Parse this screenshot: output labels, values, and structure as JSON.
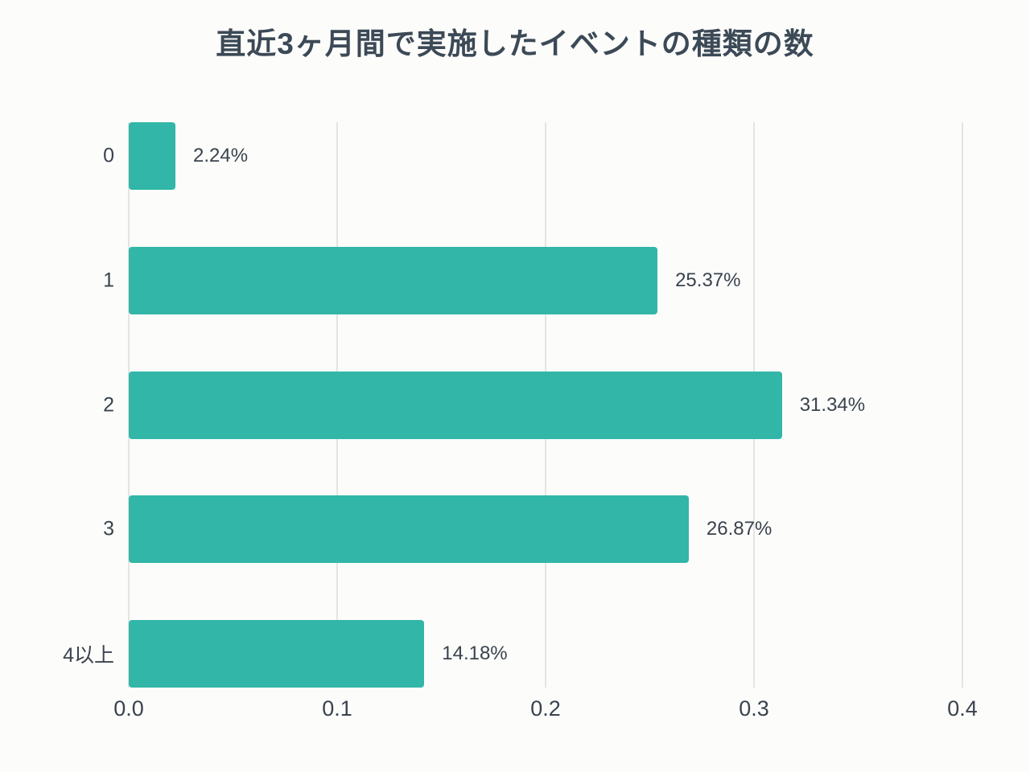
{
  "colors": {
    "bar": "#31b6a8",
    "grid": "#e4e4e3",
    "text": "#3a434d",
    "title": "#3c4956",
    "background": "#fcfcfb"
  },
  "chart_data": {
    "type": "bar",
    "orientation": "horizontal",
    "title": "直近3ヶ月間で実施したイベントの種類の数",
    "categories": [
      "0",
      "1",
      "2",
      "3",
      "4以上"
    ],
    "values": [
      0.0224,
      0.2537,
      0.3134,
      0.2687,
      0.1418
    ],
    "value_labels": [
      "2.24%",
      "25.37%",
      "31.34%",
      "26.87%",
      "14.18%"
    ],
    "x_ticks": [
      "0.0",
      "0.1",
      "0.2",
      "0.3",
      "0.4"
    ],
    "xlim": [
      0,
      0.4
    ],
    "xlabel": "",
    "ylabel": "",
    "grid": true,
    "legend": "none"
  }
}
